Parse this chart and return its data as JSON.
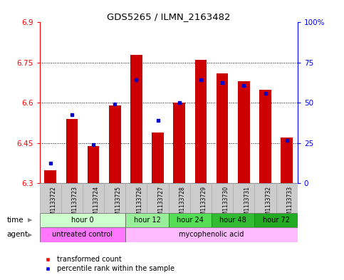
{
  "title": "GDS5265 / ILMN_2163482",
  "samples": [
    "GSM1133722",
    "GSM1133723",
    "GSM1133724",
    "GSM1133725",
    "GSM1133726",
    "GSM1133727",
    "GSM1133728",
    "GSM1133729",
    "GSM1133730",
    "GSM1133731",
    "GSM1133732",
    "GSM1133733"
  ],
  "red_values": [
    6.35,
    6.54,
    6.44,
    6.59,
    6.78,
    6.49,
    6.6,
    6.76,
    6.71,
    6.68,
    6.65,
    6.47
  ],
  "blue_values": [
    6.375,
    6.555,
    6.445,
    6.595,
    6.685,
    6.535,
    6.6,
    6.685,
    6.675,
    6.665,
    6.635,
    6.46
  ],
  "y_min": 6.3,
  "y_max": 6.9,
  "y_ticks_left": [
    6.3,
    6.45,
    6.6,
    6.75,
    6.9
  ],
  "y_ticks_right": [
    0,
    25,
    50,
    75,
    100
  ],
  "time_groups": [
    {
      "label": "hour 0",
      "start": 0,
      "end": 4,
      "color": "#ccffcc"
    },
    {
      "label": "hour 12",
      "start": 4,
      "end": 6,
      "color": "#99ee99"
    },
    {
      "label": "hour 24",
      "start": 6,
      "end": 8,
      "color": "#55dd55"
    },
    {
      "label": "hour 48",
      "start": 8,
      "end": 10,
      "color": "#33bb33"
    },
    {
      "label": "hour 72",
      "start": 10,
      "end": 12,
      "color": "#22aa22"
    }
  ],
  "agent_groups": [
    {
      "label": "untreated control",
      "start": 0,
      "end": 4,
      "color": "#ff77ff"
    },
    {
      "label": "mycophenolic acid",
      "start": 4,
      "end": 12,
      "color": "#ffbbff"
    }
  ],
  "bar_color": "#cc0000",
  "dot_color": "#0000cc",
  "baseline": 6.3,
  "bar_width": 0.55,
  "sample_bg_color": "#cccccc",
  "fig_bg_color": "#ffffff"
}
